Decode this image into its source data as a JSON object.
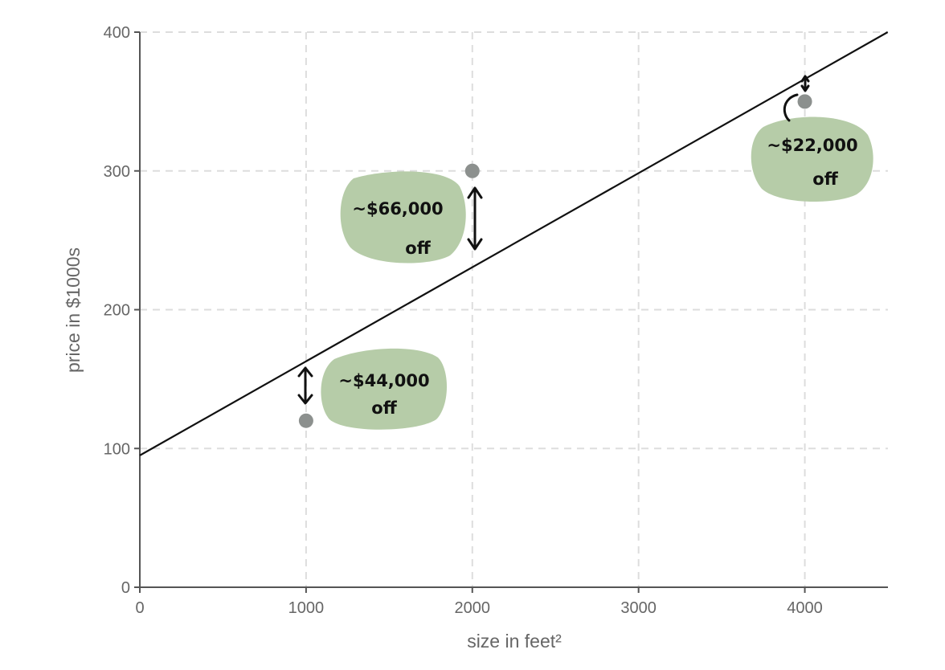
{
  "chart_data": {
    "type": "scatter",
    "xlabel": "size in feet²",
    "ylabel": "price in $1000s",
    "xlim": [
      0,
      4500
    ],
    "ylim": [
      0,
      400
    ],
    "x_ticks": [
      0,
      1000,
      2000,
      3000,
      4000
    ],
    "y_ticks": [
      0,
      100,
      200,
      300,
      400
    ],
    "grid": true,
    "points": [
      {
        "x": 1000,
        "y": 120
      },
      {
        "x": 2000,
        "y": 300
      },
      {
        "x": 4000,
        "y": 350
      }
    ],
    "fit_line": {
      "intercept": 95,
      "slope": 0.0678
    },
    "annotations": [
      {
        "x": 1000,
        "line1": "~$44,000",
        "line2": "off"
      },
      {
        "x": 2000,
        "line1": "~$66,000",
        "line2": "off"
      },
      {
        "x": 4000,
        "line1": "~$22,000",
        "line2": "off"
      }
    ],
    "colors": {
      "point": "#8c908e",
      "line": "#111111",
      "note_fill": "#b6cca8",
      "grid": "#dddddd"
    }
  }
}
